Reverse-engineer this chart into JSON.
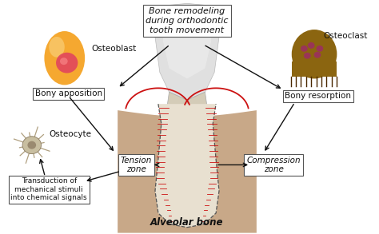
{
  "bg_color": "#ffffff",
  "title_text": "Bone remodeling\nduring orthodontic\ntooth movement",
  "osteoblast_label": "Osteoblast",
  "osteoclast_label": "Osteoclast",
  "osteocyte_label": "Osteocyte",
  "bony_apposition_label": "Bony apposition",
  "bony_resorption_label": "Bony resorption",
  "tension_zone_label": "Tension\nzone",
  "compression_zone_label": "Compression\nzone",
  "transduction_label": "Transduction of\nmechanical stimuli\ninto chemical signals",
  "alveolar_bone_label": "Alveolar bone",
  "osteoblast_color": "#F5A830",
  "osteoblast_highlight": "#FAD88A",
  "osteoblast_nucleus_color": "#E04060",
  "osteoclast_body_color": "#8B6510",
  "osteocyte_body_color": "#c0b090",
  "tooth_crown_color": "#d0d0d0",
  "tooth_crown_color2": "#e8e8e8",
  "tooth_root_color": "#c0b8b0",
  "alveolar_color": "#c8a888",
  "pdl_color": "#cc1111",
  "fiber_color": "#cc1111",
  "dashed_color": "#555555",
  "box_edge_color": "#555555",
  "arrow_color": "#111111",
  "text_color": "#111111",
  "font_size_small": 6.5,
  "font_size_label": 7.5,
  "font_size_title": 8.0,
  "font_size_alveolar": 8.5
}
